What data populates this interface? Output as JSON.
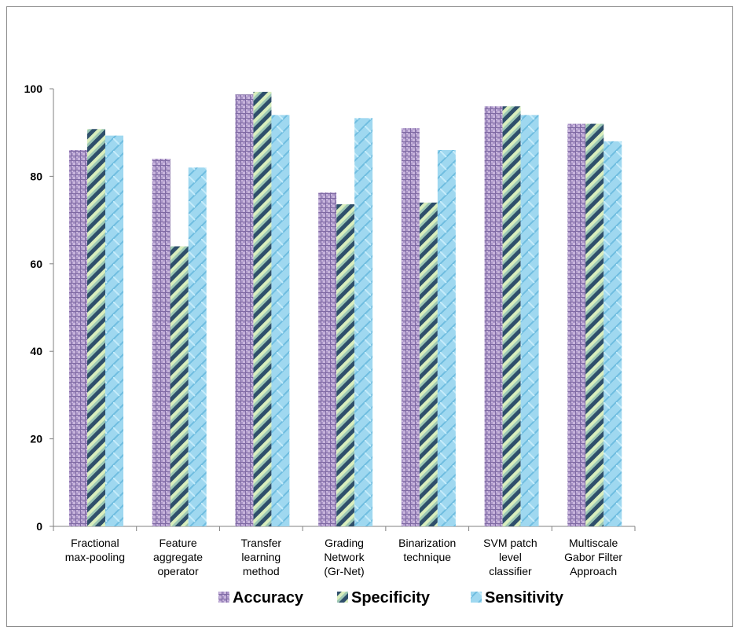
{
  "chart_data": {
    "type": "bar",
    "title": "",
    "xlabel": "",
    "ylabel": "",
    "ylim": [
      0,
      100
    ],
    "yticks": [
      0,
      20,
      40,
      60,
      80,
      100
    ],
    "grid": false,
    "legend_position": "bottom",
    "categories": [
      [
        "Fractional",
        "max-pooling"
      ],
      [
        "Feature",
        "aggregate",
        "operator"
      ],
      [
        "Transfer",
        "learning",
        "method"
      ],
      [
        "Grading",
        "Network",
        "(Gr-Net)"
      ],
      [
        "Binarization",
        "technique"
      ],
      [
        "SVM patch",
        "level",
        "classifier"
      ],
      [
        "Multiscale",
        "Gabor Filter",
        "Approach"
      ]
    ],
    "series": [
      {
        "name": "Accuracy",
        "values": [
          86,
          84,
          98.7,
          76.3,
          91,
          96,
          92
        ],
        "color": "#b7a3cf"
      },
      {
        "name": "Specificity",
        "values": [
          90.8,
          64,
          99.3,
          73.6,
          74,
          96,
          92
        ],
        "color": "#8fb0a9"
      },
      {
        "name": "Sensitivity",
        "values": [
          89.3,
          82,
          94,
          93.3,
          86,
          94,
          88
        ],
        "color": "#8fd0ec"
      }
    ]
  }
}
